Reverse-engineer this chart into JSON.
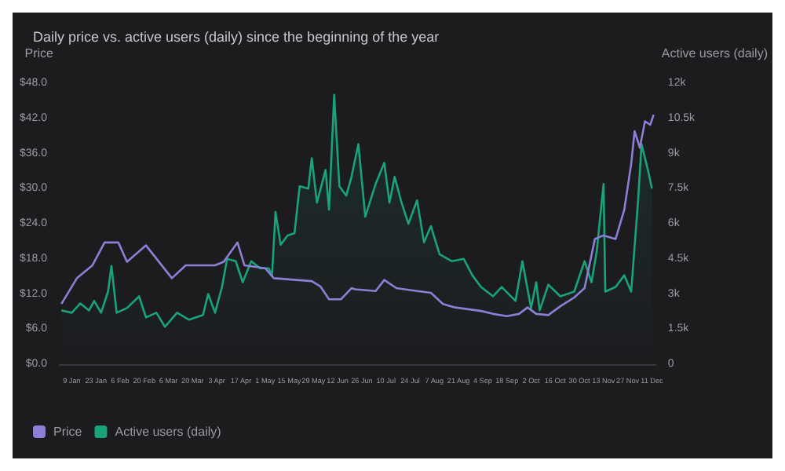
{
  "chart_data": {
    "type": "line",
    "title": "Daily price vs. active users (daily) since the beginning of the year",
    "ylabel": "Price",
    "y2label": "Active users (daily)",
    "xlim": [
      "--01-02",
      "--12-13"
    ],
    "xticks": [
      {
        "value": "--01-09",
        "label": "9 Jan"
      },
      {
        "value": "--01-23",
        "label": "23 Jan"
      },
      {
        "value": "--02-06",
        "label": "6 Feb"
      },
      {
        "value": "--02-20",
        "label": "20 Feb"
      },
      {
        "value": "--03-06",
        "label": "6 Mar"
      },
      {
        "value": "--03-20",
        "label": "20 Mar"
      },
      {
        "value": "--04-03",
        "label": "3 Apr"
      },
      {
        "value": "--04-17",
        "label": "17 Apr"
      },
      {
        "value": "--05-01",
        "label": "1 May"
      },
      {
        "value": "--05-15",
        "label": "15 May"
      },
      {
        "value": "--05-29",
        "label": "29 May"
      },
      {
        "value": "--06-12",
        "label": "12 Jun"
      },
      {
        "value": "--06-26",
        "label": "26 Jun"
      },
      {
        "value": "--07-10",
        "label": "10 Jul"
      },
      {
        "value": "--07-24",
        "label": "24 Jul"
      },
      {
        "value": "--08-07",
        "label": "7 Aug"
      },
      {
        "value": "--08-21",
        "label": "21 Aug"
      },
      {
        "value": "--09-04",
        "label": "4 Sep"
      },
      {
        "value": "--09-18",
        "label": "18 Sep"
      },
      {
        "value": "--10-02",
        "label": "2 Oct"
      },
      {
        "value": "--10-16",
        "label": "16 Oct"
      },
      {
        "value": "--10-30",
        "label": "30 Oct"
      },
      {
        "value": "--11-13",
        "label": "13 Nov"
      },
      {
        "value": "--11-27",
        "label": "27 Nov"
      },
      {
        "value": "--12-11",
        "label": "11 Dec"
      }
    ],
    "ylim": [
      0,
      48
    ],
    "yticks": [
      {
        "value": 0,
        "label": "$0.0"
      },
      {
        "value": 6,
        "label": "$6.0"
      },
      {
        "value": 12,
        "label": "$12.0"
      },
      {
        "value": 18,
        "label": "$18.0"
      },
      {
        "value": 24,
        "label": "$24.0"
      },
      {
        "value": 30,
        "label": "$30.0"
      },
      {
        "value": 36,
        "label": "$36.0"
      },
      {
        "value": 42,
        "label": "$42.0"
      },
      {
        "value": 48,
        "label": "$48.0"
      }
    ],
    "y2lim": [
      0,
      12000
    ],
    "y2ticks": [
      {
        "value": 0,
        "label": "0"
      },
      {
        "value": 1500,
        "label": "1.5k"
      },
      {
        "value": 3000,
        "label": "3k"
      },
      {
        "value": 4500,
        "label": "4.5k"
      },
      {
        "value": 6000,
        "label": "6k"
      },
      {
        "value": 7500,
        "label": "7.5k"
      },
      {
        "value": 9000,
        "label": "9k"
      },
      {
        "value": 10500,
        "label": "10.5k"
      },
      {
        "value": 12000,
        "label": "12k"
      }
    ],
    "legend": "bottom left",
    "marker": "none",
    "series": [
      {
        "name": "Price",
        "color": "#8b7fd6",
        "x": [
          "--01-03",
          "--01-12",
          "--01-21",
          "--01-28",
          "--02-05",
          "--02-10",
          "--02-21",
          "--03-08",
          "--03-16",
          "--04-02",
          "--04-07",
          "--04-15",
          "--04-19",
          "--05-01",
          "--05-06",
          "--05-28",
          "--06-02",
          "--06-07",
          "--06-14",
          "--06-20",
          "--06-22",
          "--07-04",
          "--07-09",
          "--07-16",
          "--07-28",
          "--08-05",
          "--08-12",
          "--08-19",
          "--09-03",
          "--09-10",
          "--09-18",
          "--09-25",
          "--09-30",
          "--10-05",
          "--10-12",
          "--10-19",
          "--10-27",
          "--11-02",
          "--11-08",
          "--11-13",
          "--11-20",
          "--11-25",
          "--11-29",
          "--12-01",
          "--12-04",
          "--12-07",
          "--12-10",
          "--12-12"
        ],
        "values": [
          10.3,
          14.7,
          16.9,
          20.8,
          20.8,
          17.5,
          20.3,
          14.7,
          16.9,
          16.9,
          17.5,
          20.8,
          16.9,
          16.4,
          14.7,
          14.2,
          13.3,
          11.1,
          11.1,
          13.0,
          12.8,
          12.5,
          14.4,
          13.0,
          12.5,
          12.2,
          10.3,
          9.7,
          9.1,
          8.6,
          8.2,
          8.6,
          9.7,
          8.6,
          8.4,
          9.9,
          11.4,
          13.0,
          21.4,
          22.0,
          21.4,
          26.4,
          34.2,
          39.8,
          37.0,
          41.5,
          40.9,
          42.6
        ]
      },
      {
        "name": "Active users (daily)",
        "color": "#1aa37a",
        "type": "area",
        "axis": "y2",
        "x": [
          "--01-03",
          "--01-09",
          "--01-14",
          "--01-19",
          "--01-22",
          "--01-26",
          "--01-30",
          "--02-01",
          "--02-04",
          "--02-10",
          "--02-17",
          "--02-21",
          "--02-27",
          "--03-04",
          "--03-11",
          "--03-18",
          "--03-26",
          "--03-29",
          "--04-02",
          "--04-06",
          "--04-09",
          "--04-14",
          "--04-18",
          "--04-23",
          "--04-28",
          "--05-03",
          "--05-05",
          "--05-07",
          "--05-10",
          "--05-14",
          "--05-18",
          "--05-21",
          "--05-26",
          "--05-28",
          "--05-31",
          "--06-05",
          "--06-07",
          "--06-10",
          "--06-13",
          "--06-17",
          "--06-20",
          "--06-24",
          "--06-28",
          "--07-04",
          "--07-09",
          "--07-12",
          "--07-15",
          "--07-19",
          "--07-23",
          "--07-28",
          "--08-01",
          "--08-05",
          "--08-10",
          "--08-17",
          "--08-24",
          "--08-29",
          "--09-03",
          "--09-10",
          "--09-15",
          "--09-23",
          "--09-27",
          "--10-02",
          "--10-05",
          "--10-07",
          "--10-12",
          "--10-19",
          "--10-27",
          "--11-02",
          "--11-06",
          "--11-09",
          "--11-13",
          "--11-14",
          "--11-20",
          "--11-25",
          "--11-29",
          "--12-03",
          "--12-05",
          "--12-09",
          "--12-11"
        ],
        "values": [
          2300,
          2200,
          2600,
          2300,
          2700,
          2200,
          3100,
          4200,
          2200,
          2400,
          2900,
          2000,
          2200,
          1600,
          2200,
          1900,
          2100,
          3000,
          2200,
          3300,
          4500,
          4400,
          3500,
          4400,
          4100,
          4100,
          3800,
          6500,
          5100,
          5500,
          5600,
          7600,
          7500,
          8800,
          6900,
          8300,
          6600,
          11500,
          7600,
          7200,
          8000,
          9400,
          6300,
          7700,
          8600,
          6900,
          8000,
          6900,
          6000,
          7000,
          5200,
          5900,
          4700,
          4400,
          4500,
          3800,
          3300,
          2900,
          3300,
          2700,
          4400,
          2400,
          3500,
          2300,
          3400,
          2900,
          3100,
          4400,
          3500,
          4800,
          7700,
          3100,
          3300,
          3800,
          3100,
          7000,
          9400,
          8200,
          7500
        ]
      }
    ]
  }
}
